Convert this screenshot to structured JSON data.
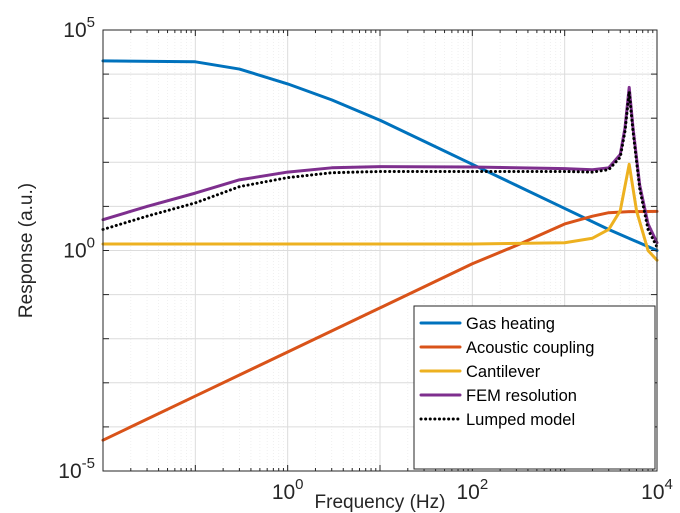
{
  "chart_data": {
    "type": "line",
    "title": "",
    "xlabel": "Frequency (Hz)",
    "ylabel": "Response (a.u.)",
    "xscale": "log",
    "yscale": "log",
    "xlim": [
      0.01,
      10000
    ],
    "ylim": [
      1e-05,
      100000
    ],
    "x_ticks": [
      {
        "value": 1,
        "base": "10",
        "exp": "0"
      },
      {
        "value": 100,
        "base": "10",
        "exp": "2"
      },
      {
        "value": 10000,
        "base": "10",
        "exp": "4"
      }
    ],
    "y_ticks": [
      {
        "value": 1e-05,
        "base": "10",
        "exp": "-5"
      },
      {
        "value": 1,
        "base": "10",
        "exp": "0"
      },
      {
        "value": 100000,
        "base": "10",
        "exp": "5"
      }
    ],
    "grid": true,
    "minor_grid": true,
    "legend_position": "bottom-right",
    "series": [
      {
        "name": "Gas heating",
        "color": "#0072BD",
        "style": "solid",
        "points": [
          [
            0.01,
            20000
          ],
          [
            0.1,
            19000
          ],
          [
            0.3,
            13000
          ],
          [
            1,
            6000
          ],
          [
            3,
            2600
          ],
          [
            10,
            900
          ],
          [
            30,
            300
          ],
          [
            100,
            90
          ],
          [
            300,
            30
          ],
          [
            1000,
            9
          ],
          [
            3000,
            3
          ],
          [
            10000,
            1
          ]
        ]
      },
      {
        "name": "Acoustic coupling",
        "color": "#D95319",
        "style": "solid",
        "points": [
          [
            0.01,
            5e-05
          ],
          [
            0.1,
            0.0005
          ],
          [
            1,
            0.005
          ],
          [
            10,
            0.05
          ],
          [
            100,
            0.5
          ],
          [
            300,
            1.3
          ],
          [
            1000,
            4
          ],
          [
            2000,
            6
          ],
          [
            3000,
            7.2
          ],
          [
            5000,
            7.6
          ],
          [
            10000,
            7.7
          ]
        ]
      },
      {
        "name": "Cantilever",
        "color": "#EDB120",
        "style": "solid",
        "points": [
          [
            0.01,
            1.4
          ],
          [
            1,
            1.4
          ],
          [
            100,
            1.4
          ],
          [
            1000,
            1.5
          ],
          [
            2000,
            1.9
          ],
          [
            3000,
            3
          ],
          [
            4000,
            8
          ],
          [
            5000,
            90
          ],
          [
            6000,
            8
          ],
          [
            8000,
            1
          ],
          [
            10000,
            0.6
          ]
        ]
      },
      {
        "name": "FEM resolution",
        "color": "#7E2F8E",
        "style": "solid",
        "points": [
          [
            0.01,
            5
          ],
          [
            0.03,
            10
          ],
          [
            0.1,
            20
          ],
          [
            0.3,
            40
          ],
          [
            1,
            60
          ],
          [
            3,
            75
          ],
          [
            10,
            80
          ],
          [
            100,
            78
          ],
          [
            1000,
            72
          ],
          [
            2000,
            68
          ],
          [
            3000,
            75
          ],
          [
            4000,
            150
          ],
          [
            4500,
            600
          ],
          [
            5000,
            5000
          ],
          [
            5500,
            600
          ],
          [
            6500,
            30
          ],
          [
            8000,
            4
          ],
          [
            10000,
            1.5
          ]
        ]
      },
      {
        "name": "Lumped model",
        "color": "#000000",
        "style": "dotted",
        "points": [
          [
            0.01,
            3
          ],
          [
            0.03,
            6
          ],
          [
            0.1,
            12
          ],
          [
            0.3,
            28
          ],
          [
            1,
            45
          ],
          [
            3,
            58
          ],
          [
            10,
            62
          ],
          [
            100,
            62
          ],
          [
            1000,
            62
          ],
          [
            2000,
            60
          ],
          [
            3000,
            68
          ],
          [
            4000,
            130
          ],
          [
            4500,
            500
          ],
          [
            5000,
            4000
          ],
          [
            5500,
            500
          ],
          [
            6500,
            25
          ],
          [
            8000,
            3
          ],
          [
            10000,
            1.2
          ]
        ]
      }
    ]
  }
}
